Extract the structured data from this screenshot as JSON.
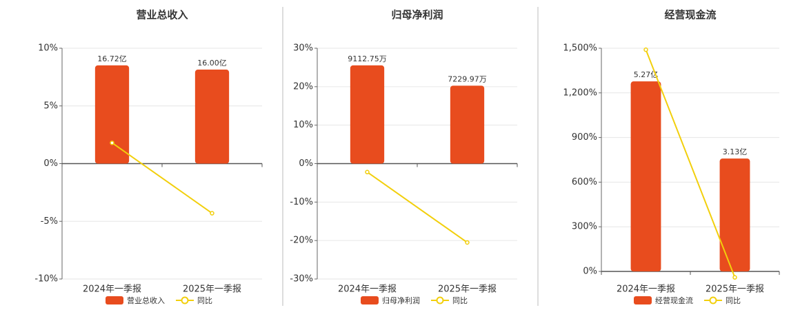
{
  "chart_data": [
    {
      "type": "bar",
      "title": "营业总收入",
      "categories": [
        "2024年一季报",
        "2025年一季报"
      ],
      "series": [
        {
          "name": "营业总收入",
          "color": "#e84c1e",
          "type": "bar",
          "axis": "y2",
          "values": [
            16.72,
            16.0
          ],
          "value_labels": [
            "16.72亿",
            "16.00亿"
          ]
        },
        {
          "name": "同比",
          "color": "#f2cf0c",
          "type": "line",
          "values": [
            1.8,
            -4.3
          ]
        }
      ],
      "ylim": [
        -10,
        10
      ],
      "yticks": [
        {
          "value": -10,
          "label": "-10%"
        },
        {
          "value": -5,
          "label": "-5%"
        },
        {
          "value": 0,
          "label": "0%"
        },
        {
          "value": 5,
          "label": "5%"
        },
        {
          "value": 10,
          "label": "10%"
        }
      ],
      "y2lim": [
        -19.64,
        19.64
      ],
      "grid": true
    },
    {
      "type": "bar",
      "title": "归母净利润",
      "categories": [
        "2024年一季报",
        "2025年一季报"
      ],
      "series": [
        {
          "name": "归母净利润",
          "color": "#e84c1e",
          "type": "bar",
          "axis": "y2",
          "values": [
            9112.75,
            7229.97
          ],
          "value_labels": [
            "9112.75万",
            "7229.97万"
          ]
        },
        {
          "name": "同比",
          "color": "#f2cf0c",
          "type": "line",
          "values": [
            -2.2,
            -20.5
          ]
        }
      ],
      "ylim": [
        -30,
        30
      ],
      "yticks": [
        {
          "value": -30,
          "label": "-30%"
        },
        {
          "value": -20,
          "label": "-20%"
        },
        {
          "value": -10,
          "label": "-10%"
        },
        {
          "value": 0,
          "label": "0%"
        },
        {
          "value": 10,
          "label": "10%"
        },
        {
          "value": 20,
          "label": "20%"
        },
        {
          "value": 30,
          "label": "30%"
        }
      ],
      "y2lim": [
        -10706,
        10706
      ],
      "grid": true
    },
    {
      "type": "bar",
      "title": "经营现金流",
      "categories": [
        "2024年一季报",
        "2025年一季报"
      ],
      "series": [
        {
          "name": "经营现金流",
          "color": "#e84c1e",
          "type": "bar",
          "axis": "y2",
          "values": [
            5.27,
            3.13
          ],
          "value_labels": [
            "5.27亿",
            "3.13亿"
          ]
        },
        {
          "name": "同比",
          "color": "#f2cf0c",
          "type": "line",
          "values": [
            1490,
            -40
          ]
        }
      ],
      "ylim": [
        0,
        1500
      ],
      "yticks": [
        {
          "value": 0,
          "label": "0%"
        },
        {
          "value": 300,
          "label": "300%"
        },
        {
          "value": 600,
          "label": "600%"
        },
        {
          "value": 900,
          "label": "900%"
        },
        {
          "value": 1200,
          "label": "1,200%"
        },
        {
          "value": 1500,
          "label": "1,500%"
        }
      ],
      "y2lim": [
        0,
        6.19
      ],
      "grid": true
    }
  ]
}
